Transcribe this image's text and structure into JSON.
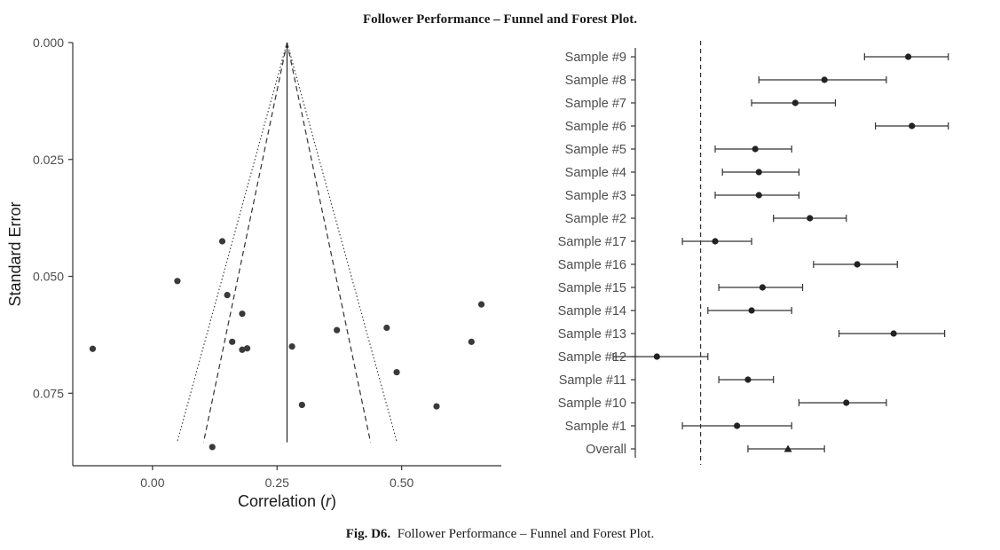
{
  "figure": {
    "title": "Follower Performance – Funnel and Forest Plot.",
    "caption_label": "Fig. D6.",
    "caption_text": "Follower Performance – Funnel and Forest Plot."
  },
  "chart_data": [
    {
      "type": "scatter",
      "subtype": "funnel",
      "xlabel": "Correlation",
      "xlabel_italic": "r",
      "ylabel": "Standard Error",
      "xlim": [
        -0.16,
        0.7
      ],
      "ylim": [
        0.0,
        0.0905
      ],
      "y_reversed": true,
      "x_ticks": [
        0.0,
        0.25,
        0.5
      ],
      "x_tick_labels": [
        "0.00",
        "0.25",
        "0.50"
      ],
      "y_ticks": [
        0.0,
        0.025,
        0.05,
        0.075
      ],
      "y_tick_labels": [
        "0.000",
        "0.025",
        "0.050",
        "0.075"
      ],
      "summary_r": 0.27,
      "funnel_max_se": 0.0855,
      "funnel_inner_z": 1.96,
      "funnel_outer_z": 2.58,
      "grid": false,
      "points": [
        {
          "r": 0.14,
          "se": 0.0425
        },
        {
          "r": 0.05,
          "se": 0.051
        },
        {
          "r": 0.15,
          "se": 0.054
        },
        {
          "r": 0.18,
          "se": 0.058
        },
        {
          "r": -0.12,
          "se": 0.0655
        },
        {
          "r": 0.16,
          "se": 0.064
        },
        {
          "r": 0.18,
          "se": 0.0657
        },
        {
          "r": 0.19,
          "se": 0.0654
        },
        {
          "r": 0.28,
          "se": 0.065
        },
        {
          "r": 0.37,
          "se": 0.0615
        },
        {
          "r": 0.47,
          "se": 0.061
        },
        {
          "r": 0.66,
          "se": 0.056
        },
        {
          "r": 0.64,
          "se": 0.064
        },
        {
          "r": 0.49,
          "se": 0.0705
        },
        {
          "r": 0.3,
          "se": 0.0775
        },
        {
          "r": 0.57,
          "se": 0.0778
        },
        {
          "r": 0.12,
          "se": 0.0865
        }
      ]
    },
    {
      "type": "scatter",
      "subtype": "forest",
      "xlim": [
        -0.15,
        0.8
      ],
      "reference_line": 0.0,
      "grid": false,
      "studies": [
        {
          "label": "Sample #9",
          "est": 0.57,
          "lo": 0.45,
          "hi": 0.68
        },
        {
          "label": "Sample #8",
          "est": 0.34,
          "lo": 0.16,
          "hi": 0.51
        },
        {
          "label": "Sample #7",
          "est": 0.26,
          "lo": 0.14,
          "hi": 0.37
        },
        {
          "label": "Sample #6",
          "est": 0.58,
          "lo": 0.48,
          "hi": 0.68
        },
        {
          "label": "Sample #5",
          "est": 0.15,
          "lo": 0.04,
          "hi": 0.25
        },
        {
          "label": "Sample #4",
          "est": 0.16,
          "lo": 0.06,
          "hi": 0.27
        },
        {
          "label": "Sample #3",
          "est": 0.16,
          "lo": 0.04,
          "hi": 0.27
        },
        {
          "label": "Sample #2",
          "est": 0.3,
          "lo": 0.2,
          "hi": 0.4
        },
        {
          "label": "Sample #17",
          "est": 0.04,
          "lo": -0.05,
          "hi": 0.14
        },
        {
          "label": "Sample #16",
          "est": 0.43,
          "lo": 0.31,
          "hi": 0.54
        },
        {
          "label": "Sample #15",
          "est": 0.17,
          "lo": 0.05,
          "hi": 0.28
        },
        {
          "label": "Sample #14",
          "est": 0.14,
          "lo": 0.02,
          "hi": 0.25
        },
        {
          "label": "Sample #13",
          "est": 0.53,
          "lo": 0.38,
          "hi": 0.67
        },
        {
          "label": "Sample #12",
          "est": -0.12,
          "lo": -0.24,
          "hi": 0.02
        },
        {
          "label": "Sample #11",
          "est": 0.13,
          "lo": 0.05,
          "hi": 0.2
        },
        {
          "label": "Sample #10",
          "est": 0.4,
          "lo": 0.27,
          "hi": 0.51
        },
        {
          "label": "Sample #1",
          "est": 0.1,
          "lo": -0.05,
          "hi": 0.25
        },
        {
          "label": "Overall",
          "est": 0.24,
          "lo": 0.13,
          "hi": 0.34,
          "marker": "triangle"
        }
      ]
    }
  ]
}
